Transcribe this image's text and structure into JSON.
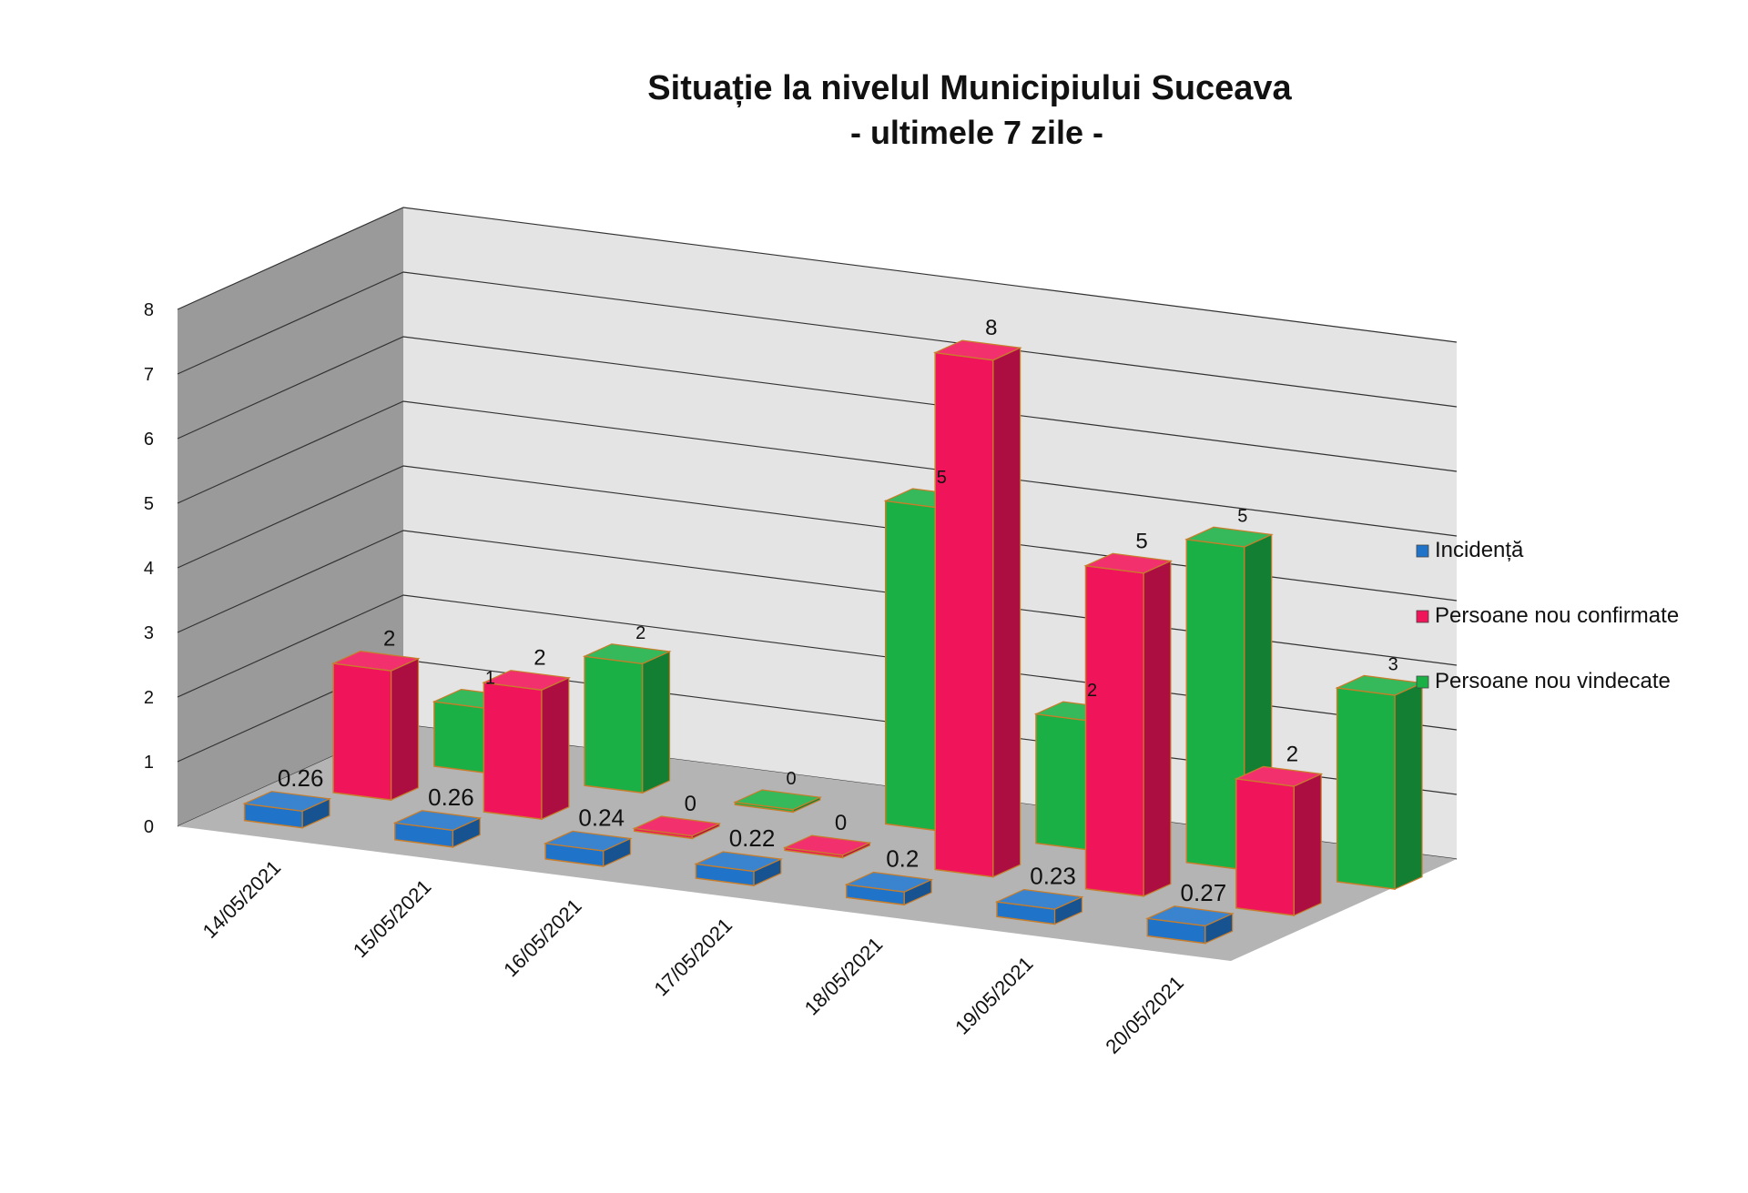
{
  "chart_data": {
    "type": "bar",
    "title": "Situație la nivelul Municipiului Suceava",
    "subtitle": "- ultimele 7 zile -",
    "categories": [
      "14/05/2021",
      "15/05/2021",
      "16/05/2021",
      "17/05/2021",
      "18/05/2021",
      "19/05/2021",
      "20/05/2021"
    ],
    "series": [
      {
        "name": "Incidență",
        "color": "#1f73c8",
        "values": [
          0.26,
          0.26,
          0.24,
          0.22,
          0.2,
          0.23,
          0.27
        ],
        "labels": [
          "0.26",
          "0.26",
          "0.24",
          "0.22",
          "0.2",
          "0.23",
          "0.27"
        ]
      },
      {
        "name": "Persoane nou confirmate",
        "color": "#f0145a",
        "values": [
          2,
          2,
          0,
          0,
          8,
          5,
          2
        ],
        "labels": [
          "2",
          "2",
          "0",
          "0",
          "8",
          "5",
          "2"
        ]
      },
      {
        "name": "Persoane nou vindecate",
        "color": "#1ab045",
        "values": [
          1,
          2,
          0,
          5,
          2,
          5,
          3
        ],
        "labels": [
          "1",
          "2",
          "0",
          "5",
          "2",
          "5",
          "3"
        ]
      }
    ],
    "ylim": [
      0,
      8
    ],
    "yticks": [
      "0",
      "1",
      "2",
      "3",
      "4",
      "5",
      "6",
      "7",
      "8"
    ],
    "grid": true,
    "legend": "right",
    "style": "3d-clustered-column"
  }
}
